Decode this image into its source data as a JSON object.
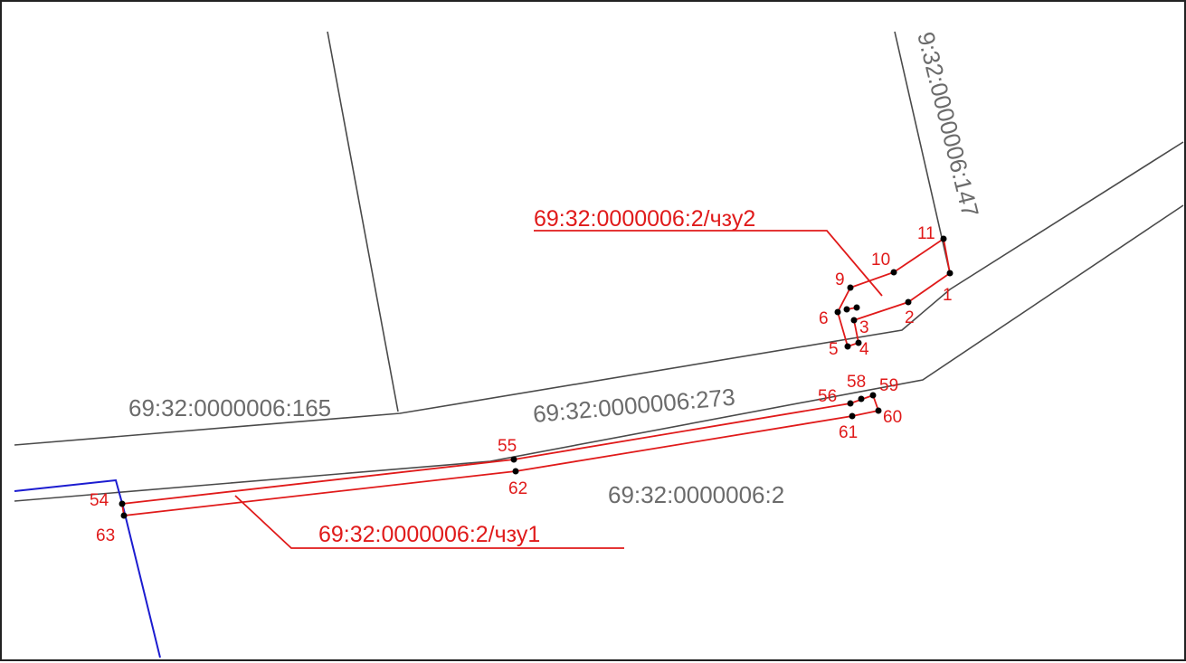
{
  "parcels": {
    "p165": "69:32:0000006:165",
    "p273": "69:32:0000006:273",
    "p147": "9:32:0000006:147",
    "p2": "69:32:0000006:2"
  },
  "zones": {
    "chzu1": "69:32:0000006:2/чзу1",
    "chzu2": "69:32:0000006:2/чзу2"
  },
  "points": {
    "p1": "1",
    "p2": "2",
    "p3": "3",
    "p4": "4",
    "p5": "5",
    "p6": "6",
    "p9": "9",
    "p10": "10",
    "p11": "11",
    "p54": "54",
    "p55": "55",
    "p56": "56",
    "p58": "58",
    "p59": "59",
    "p60": "60",
    "p61": "61",
    "p62": "62",
    "p63": "63"
  },
  "colors": {
    "boundary": "#4a4a4a",
    "zone": "#e01a1a",
    "adjacent": "#1c1cd0",
    "parcel_label": "#6b6b6b"
  }
}
